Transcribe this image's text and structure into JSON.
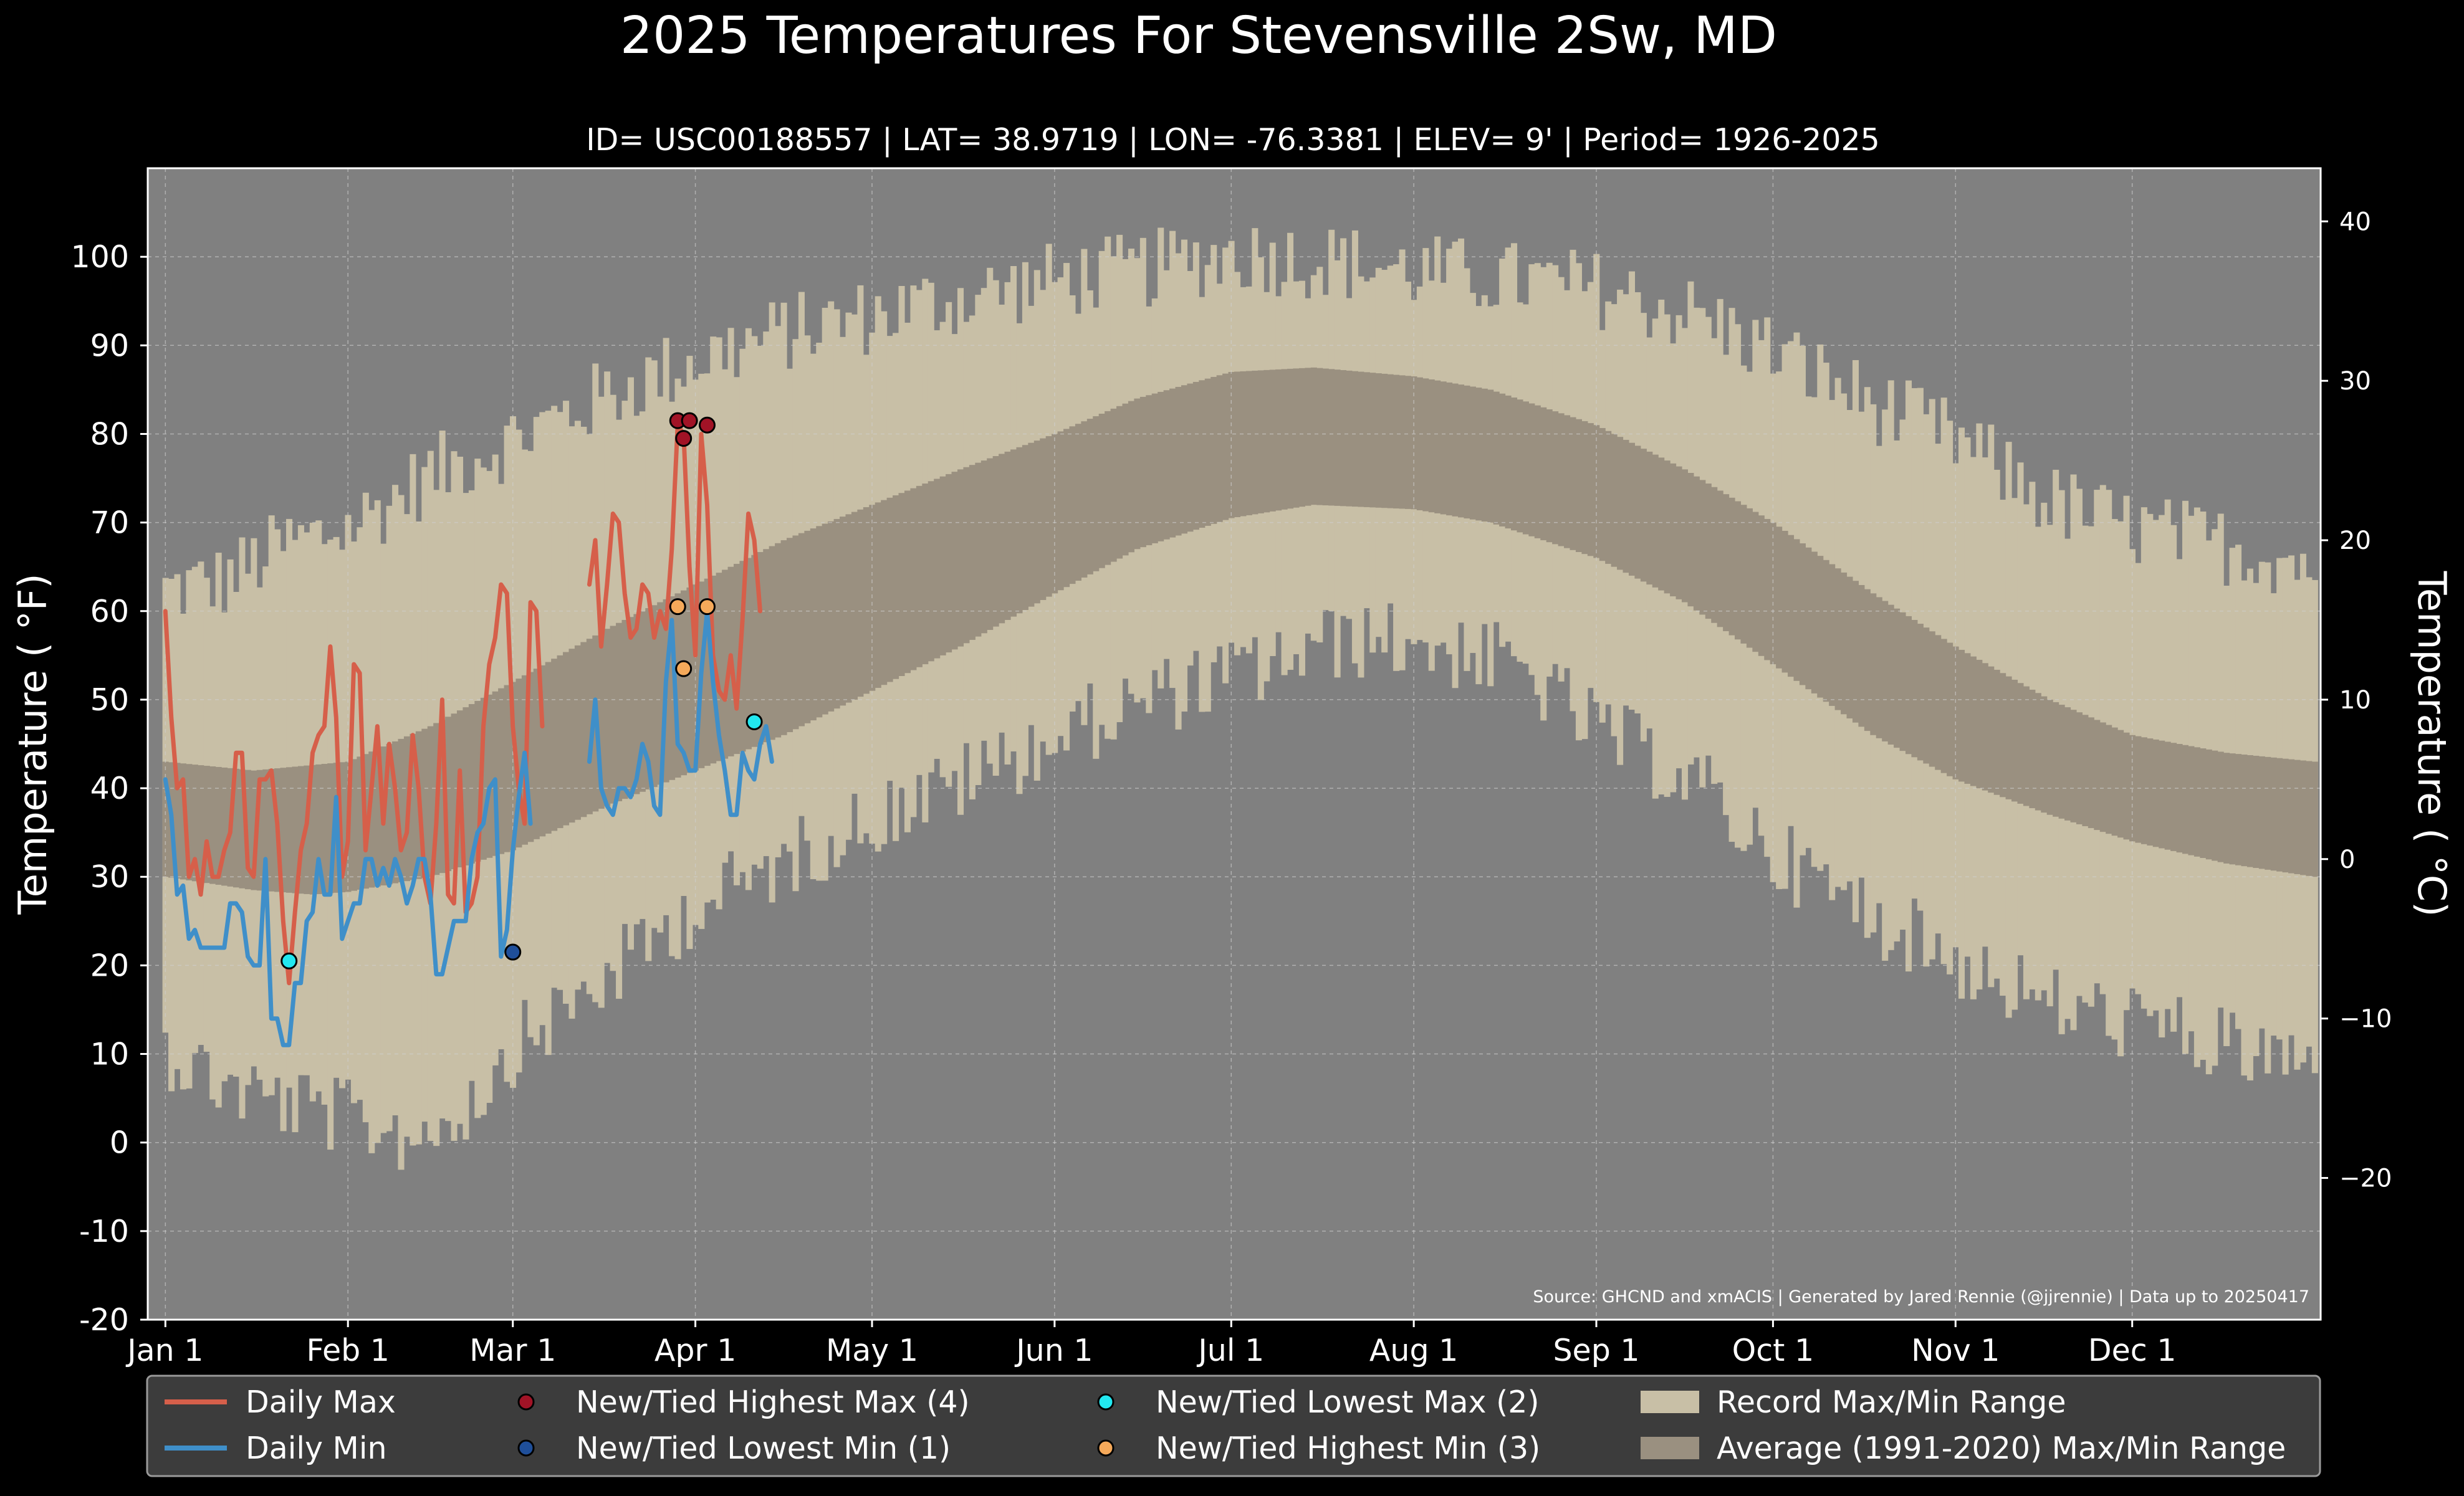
{
  "chart_data": {
    "type": "line",
    "title": "2025 Temperatures For Stevensville 2Sw, MD",
    "subtitle": "ID= USC00188557 | LAT= 38.9719 | LON= -76.3381 | ELEV= 9' | Period= 1926-2025",
    "ylabel": "Temperature ( $^\\circ$F)",
    "ylabel_display": "Temperature ( °F)",
    "ylabel_right": "Temperature ( °C)",
    "xlabel": "",
    "source": "Source: GHCND and xmACIS | Generated by Jared Rennie (@jjrennie) | Data up to 20250417",
    "ylim": [
      -20,
      110
    ],
    "xlim_day": [
      -3,
      366
    ],
    "yticks": [
      -20,
      -10,
      0,
      10,
      20,
      30,
      40,
      50,
      60,
      70,
      80,
      90,
      100
    ],
    "yticks_right_c": [
      -20,
      -10,
      0,
      10,
      20,
      30,
      40
    ],
    "xticks": [
      {
        "label": "Jan 1",
        "day": 0
      },
      {
        "label": "Feb 1",
        "day": 31
      },
      {
        "label": "Mar 1",
        "day": 59
      },
      {
        "label": "Apr 1",
        "day": 90
      },
      {
        "label": "May 1",
        "day": 120
      },
      {
        "label": "Jun 1",
        "day": 151
      },
      {
        "label": "Jul 1",
        "day": 181
      },
      {
        "label": "Aug 1",
        "day": 212
      },
      {
        "label": "Sep 1",
        "day": 243
      },
      {
        "label": "Oct 1",
        "day": 273
      },
      {
        "label": "Nov 1",
        "day": 304
      },
      {
        "label": "Dec 1",
        "day": 334
      }
    ],
    "grid": true,
    "legend_position": "bottom",
    "colors": {
      "figure_bg": "#000000",
      "plot_bg": "#808080",
      "record_range": "#c8bfa6",
      "normal_range": "#9a9080",
      "daily_max": "#d65f4a",
      "daily_min": "#3f8fc9",
      "new_high_max": "#a11326",
      "new_low_min": "#1f4f9a",
      "new_low_max": "#22e8f0",
      "new_high_min": "#f5a95a",
      "grid": "#d0d0d0",
      "text": "#ffffff",
      "legend_bg": "#3c3c3c"
    },
    "legend": [
      {
        "key": "daily_max",
        "label": "Daily Max",
        "kind": "line"
      },
      {
        "key": "daily_min",
        "label": "Daily Min",
        "kind": "line"
      },
      {
        "key": "new_high_max",
        "label": "New/Tied Highest Max (4)",
        "kind": "dot"
      },
      {
        "key": "new_low_min",
        "label": "New/Tied Lowest Min (1)",
        "kind": "dot"
      },
      {
        "key": "new_low_max",
        "label": "New/Tied Lowest Max (2)",
        "kind": "dot"
      },
      {
        "key": "new_high_min",
        "label": "New/Tied Highest Min (3)",
        "kind": "dot"
      },
      {
        "key": "record_range",
        "label": "Record Max/Min Range",
        "kind": "patch"
      },
      {
        "key": "normal_range",
        "label": "Average (1991-2020) Max/Min Range",
        "kind": "patch"
      }
    ],
    "record_max_control": [
      [
        0,
        61
      ],
      [
        10,
        62
      ],
      [
        20,
        66
      ],
      [
        31,
        68
      ],
      [
        45,
        74
      ],
      [
        59,
        78
      ],
      [
        75,
        83
      ],
      [
        90,
        87
      ],
      [
        105,
        90
      ],
      [
        120,
        92
      ],
      [
        135,
        94
      ],
      [
        151,
        96
      ],
      [
        165,
        97
      ],
      [
        181,
        99
      ],
      [
        200,
        98
      ],
      [
        212,
        97
      ],
      [
        230,
        96
      ],
      [
        243,
        95
      ],
      [
        260,
        92
      ],
      [
        273,
        88
      ],
      [
        290,
        82
      ],
      [
        304,
        78
      ],
      [
        320,
        71
      ],
      [
        334,
        68
      ],
      [
        350,
        66
      ],
      [
        365,
        64
      ]
    ],
    "record_min_control": [
      [
        0,
        12
      ],
      [
        10,
        8
      ],
      [
        20,
        6
      ],
      [
        31,
        4
      ],
      [
        42,
        2
      ],
      [
        52,
        6
      ],
      [
        59,
        12
      ],
      [
        75,
        20
      ],
      [
        90,
        28
      ],
      [
        105,
        33
      ],
      [
        120,
        38
      ],
      [
        135,
        42
      ],
      [
        151,
        47
      ],
      [
        165,
        51
      ],
      [
        181,
        54
      ],
      [
        200,
        58
      ],
      [
        212,
        58
      ],
      [
        230,
        55
      ],
      [
        243,
        48
      ],
      [
        260,
        42
      ],
      [
        273,
        34
      ],
      [
        290,
        27
      ],
      [
        304,
        22
      ],
      [
        320,
        17
      ],
      [
        334,
        15
      ],
      [
        350,
        12
      ],
      [
        365,
        10
      ]
    ],
    "normal_max_control": [
      [
        0,
        43
      ],
      [
        15,
        42
      ],
      [
        31,
        43
      ],
      [
        45,
        47
      ],
      [
        59,
        52
      ],
      [
        75,
        58
      ],
      [
        90,
        63
      ],
      [
        105,
        68
      ],
      [
        120,
        72
      ],
      [
        135,
        76
      ],
      [
        151,
        80
      ],
      [
        165,
        84
      ],
      [
        181,
        87
      ],
      [
        195,
        87.5
      ],
      [
        212,
        86.5
      ],
      [
        225,
        85
      ],
      [
        243,
        81
      ],
      [
        258,
        76
      ],
      [
        273,
        70
      ],
      [
        290,
        62
      ],
      [
        304,
        56
      ],
      [
        320,
        50
      ],
      [
        334,
        46
      ],
      [
        350,
        44
      ],
      [
        365,
        43
      ]
    ],
    "normal_min_control": [
      [
        0,
        30
      ],
      [
        15,
        28.5
      ],
      [
        25,
        28
      ],
      [
        31,
        28.3
      ],
      [
        45,
        30
      ],
      [
        59,
        33
      ],
      [
        75,
        38
      ],
      [
        90,
        42
      ],
      [
        105,
        46
      ],
      [
        120,
        51
      ],
      [
        135,
        56
      ],
      [
        151,
        62
      ],
      [
        165,
        67
      ],
      [
        181,
        70.5
      ],
      [
        195,
        72
      ],
      [
        212,
        71.5
      ],
      [
        225,
        70
      ],
      [
        243,
        66
      ],
      [
        258,
        61
      ],
      [
        273,
        54
      ],
      [
        290,
        46
      ],
      [
        304,
        41
      ],
      [
        320,
        37
      ],
      [
        334,
        34
      ],
      [
        350,
        31.5
      ],
      [
        365,
        30
      ]
    ],
    "series": [
      {
        "name": "Daily Max",
        "key": "daily_max",
        "start_day": 0,
        "values": [
          60,
          48,
          40,
          41,
          30,
          32,
          28,
          34,
          30,
          30,
          33,
          35,
          44,
          44,
          31,
          30,
          41,
          41,
          42,
          36,
          25,
          18,
          26,
          33,
          36,
          44,
          46,
          47,
          56,
          48,
          30,
          34,
          54,
          53,
          33,
          40,
          47,
          36,
          45,
          40,
          33,
          35,
          46,
          40,
          30,
          27,
          36,
          50,
          28,
          27,
          42,
          26,
          27,
          30,
          47,
          54,
          57,
          63,
          62,
          47,
          40,
          36,
          61,
          60,
          47
        ]
      },
      {
        "name": "Daily Min",
        "key": "daily_min",
        "start_day": 0,
        "values": [
          41,
          37,
          28,
          29,
          23,
          24,
          22,
          22,
          22,
          22,
          22,
          27,
          27,
          26,
          21,
          20,
          20,
          32,
          14,
          14,
          11,
          11,
          18,
          18,
          25,
          26,
          32,
          28,
          28,
          39,
          23,
          25,
          27,
          27,
          32,
          32,
          29,
          31,
          29,
          32,
          30,
          27,
          29,
          32,
          32,
          28,
          19,
          19,
          22,
          25,
          25,
          25,
          32,
          35,
          36,
          40,
          41,
          21,
          24,
          33,
          39,
          44,
          36
        ]
      },
      {
        "name": "Daily Max",
        "key": "daily_max",
        "start_day": 72,
        "values": [
          63,
          68,
          56,
          63,
          71,
          70,
          62,
          57,
          58,
          63,
          62,
          57,
          60,
          58,
          67,
          81,
          80,
          65,
          55,
          80,
          72,
          55,
          51,
          50,
          55,
          49,
          59,
          71,
          68,
          60
        ]
      },
      {
        "name": "Daily Min",
        "key": "daily_min",
        "start_day": 72,
        "values": [
          43,
          50,
          40,
          38,
          37,
          40,
          40,
          39,
          41,
          45,
          43,
          38,
          37,
          52,
          59,
          45,
          44,
          42,
          42,
          53,
          60,
          52,
          46,
          42,
          37,
          37,
          44,
          42,
          41,
          45,
          47,
          43
        ]
      }
    ],
    "points": [
      {
        "key": "new_high_max",
        "day": 87,
        "value": 81.5
      },
      {
        "key": "new_high_max",
        "day": 89,
        "value": 81.5
      },
      {
        "key": "new_high_max",
        "day": 88,
        "value": 79.5
      },
      {
        "key": "new_high_max",
        "day": 92,
        "value": 81
      },
      {
        "key": "new_low_min",
        "day": 59,
        "value": 21.5
      },
      {
        "key": "new_low_max",
        "day": 21,
        "value": 20.5
      },
      {
        "key": "new_low_max",
        "day": 100,
        "value": 47.5
      },
      {
        "key": "new_high_min",
        "day": 87,
        "value": 60.5
      },
      {
        "key": "new_high_min",
        "day": 92,
        "value": 60.5
      },
      {
        "key": "new_high_min",
        "day": 88,
        "value": 53.5
      }
    ]
  }
}
